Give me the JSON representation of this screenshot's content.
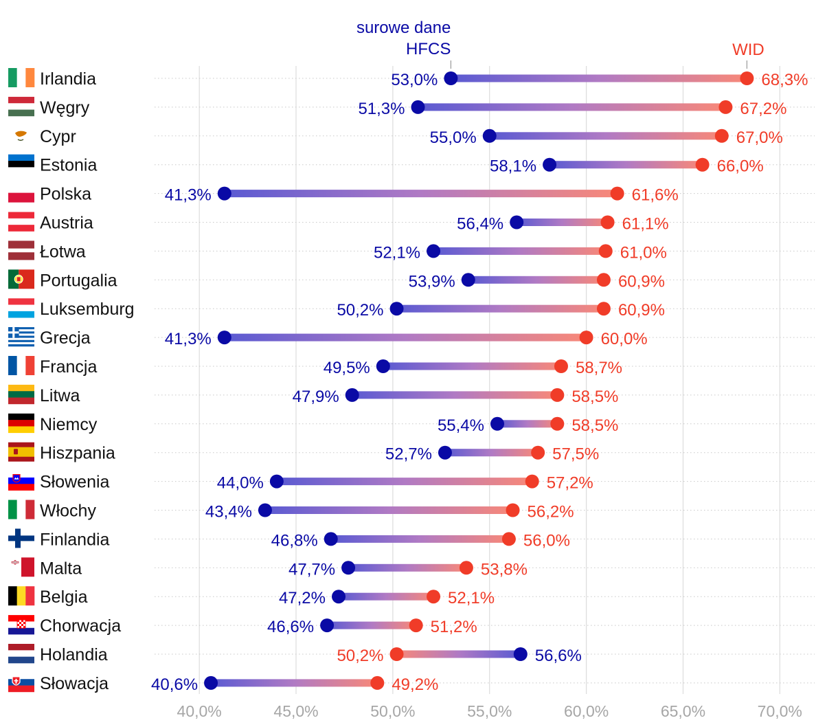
{
  "chart_data": {
    "type": "dumbbell",
    "x_range": [
      39.0,
      71.8
    ],
    "x_ticks": [
      40,
      45,
      50,
      55,
      60,
      65,
      70
    ],
    "x_tick_labels": [
      "40,0%",
      "45,0%",
      "50,0%",
      "55,0%",
      "60,0%",
      "65,0%",
      "70,0%"
    ],
    "grid": true,
    "series": [
      {
        "name_lines": [
          "surowe dane",
          "HFCS"
        ],
        "color": "#0a0aa5"
      },
      {
        "name_lines": [
          "WID"
        ],
        "color": "#f03c28"
      }
    ],
    "rows": [
      {
        "country": "Irlandia",
        "flag": "ie-flag-icon",
        "hfcs": 53.0,
        "hfcs_label": "53,0%",
        "wid": 68.3,
        "wid_label": "68,3%"
      },
      {
        "country": "Węgry",
        "flag": "hu-flag-icon",
        "hfcs": 51.3,
        "hfcs_label": "51,3%",
        "wid": 67.2,
        "wid_label": "67,2%"
      },
      {
        "country": "Cypr",
        "flag": "cy-flag-icon",
        "hfcs": 55.0,
        "hfcs_label": "55,0%",
        "wid": 67.0,
        "wid_label": "67,0%"
      },
      {
        "country": "Estonia",
        "flag": "ee-flag-icon",
        "hfcs": 58.1,
        "hfcs_label": "58,1%",
        "wid": 66.0,
        "wid_label": "66,0%"
      },
      {
        "country": "Polska",
        "flag": "pl-flag-icon",
        "hfcs": 41.3,
        "hfcs_label": "41,3%",
        "wid": 61.6,
        "wid_label": "61,6%"
      },
      {
        "country": "Austria",
        "flag": "at-flag-icon",
        "hfcs": 56.4,
        "hfcs_label": "56,4%",
        "wid": 61.1,
        "wid_label": "61,1%"
      },
      {
        "country": "Łotwa",
        "flag": "lv-flag-icon",
        "hfcs": 52.1,
        "hfcs_label": "52,1%",
        "wid": 61.0,
        "wid_label": "61,0%"
      },
      {
        "country": "Portugalia",
        "flag": "pt-flag-icon",
        "hfcs": 53.9,
        "hfcs_label": "53,9%",
        "wid": 60.9,
        "wid_label": "60,9%"
      },
      {
        "country": "Luksemburg",
        "flag": "lu-flag-icon",
        "hfcs": 50.2,
        "hfcs_label": "50,2%",
        "wid": 60.9,
        "wid_label": "60,9%"
      },
      {
        "country": "Grecja",
        "flag": "gr-flag-icon",
        "hfcs": 41.3,
        "hfcs_label": "41,3%",
        "wid": 60.0,
        "wid_label": "60,0%"
      },
      {
        "country": "Francja",
        "flag": "fr-flag-icon",
        "hfcs": 49.5,
        "hfcs_label": "49,5%",
        "wid": 58.7,
        "wid_label": "58,7%"
      },
      {
        "country": "Litwa",
        "flag": "lt-flag-icon",
        "hfcs": 47.9,
        "hfcs_label": "47,9%",
        "wid": 58.5,
        "wid_label": "58,5%"
      },
      {
        "country": "Niemcy",
        "flag": "de-flag-icon",
        "hfcs": 55.4,
        "hfcs_label": "55,4%",
        "wid": 58.5,
        "wid_label": "58,5%"
      },
      {
        "country": "Hiszpania",
        "flag": "es-flag-icon",
        "hfcs": 52.7,
        "hfcs_label": "52,7%",
        "wid": 57.5,
        "wid_label": "57,5%"
      },
      {
        "country": "Słowenia",
        "flag": "si-flag-icon",
        "hfcs": 44.0,
        "hfcs_label": "44,0%",
        "wid": 57.2,
        "wid_label": "57,2%"
      },
      {
        "country": "Włochy",
        "flag": "it-flag-icon",
        "hfcs": 43.4,
        "hfcs_label": "43,4%",
        "wid": 56.2,
        "wid_label": "56,2%"
      },
      {
        "country": "Finlandia",
        "flag": "fi-flag-icon",
        "hfcs": 46.8,
        "hfcs_label": "46,8%",
        "wid": 56.0,
        "wid_label": "56,0%"
      },
      {
        "country": "Malta",
        "flag": "mt-flag-icon",
        "hfcs": 47.7,
        "hfcs_label": "47,7%",
        "wid": 53.8,
        "wid_label": "53,8%"
      },
      {
        "country": "Belgia",
        "flag": "be-flag-icon",
        "hfcs": 47.2,
        "hfcs_label": "47,2%",
        "wid": 52.1,
        "wid_label": "52,1%"
      },
      {
        "country": "Chorwacja",
        "flag": "hr-flag-icon",
        "hfcs": 46.6,
        "hfcs_label": "46,6%",
        "wid": 51.2,
        "wid_label": "51,2%"
      },
      {
        "country": "Holandia",
        "flag": "nl-flag-icon",
        "hfcs": 56.6,
        "hfcs_label": "56,6%",
        "wid": 50.2,
        "wid_label": "50,2%"
      },
      {
        "country": "Słowacja",
        "flag": "sk-flag-icon",
        "hfcs": 40.6,
        "hfcs_label": "40,6%",
        "wid": 49.2,
        "wid_label": "49,2%"
      }
    ]
  }
}
